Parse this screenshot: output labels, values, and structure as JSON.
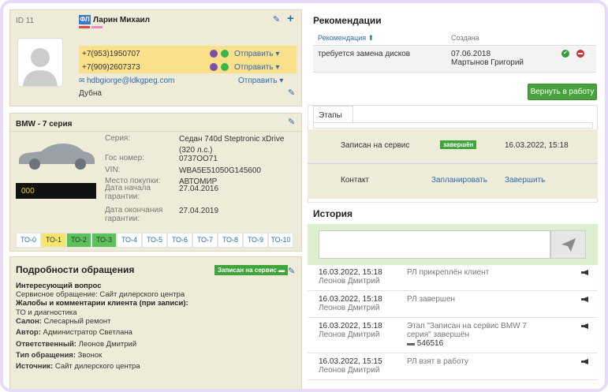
{
  "client": {
    "id": "ID 11",
    "type_badge": "ФЛ",
    "name": "Ларин Михаил",
    "phones": [
      "+7(953)1950707",
      "+7(909)2607373"
    ],
    "send": "Отправить",
    "email": "hdbgiorge@ldkgpeg.com",
    "city": "Дубна"
  },
  "car": {
    "title": "BMW - 7 серия",
    "plate_box": "000",
    "fields": [
      {
        "label": "Серия:",
        "value": "Седан 740d Steptronic xDrive (320 л.с.)"
      },
      {
        "label": "Гос номер:",
        "value": "0737ОО71"
      },
      {
        "label": "VIN:",
        "value": "WBA5E51050G145600"
      },
      {
        "label": "Место покупки:",
        "value": "АВТОМИР"
      },
      {
        "label": "Дата начала гарантии:",
        "value": "27.04.2016"
      },
      {
        "label": "Дата окончания гарантии:",
        "value": "27.04.2019"
      }
    ],
    "to": [
      "ТО-0",
      "ТО-1",
      "ТО-2",
      "ТО-3",
      "ТО-4",
      "ТО-5",
      "ТО-6",
      "ТО-7",
      "ТО-8",
      "ТО-9",
      "ТО-10"
    ]
  },
  "details": {
    "title": "Подробности обращения",
    "status": "Записан на сервис",
    "question_title": "Интересующий вопрос",
    "question": "Сервисное обращение: Сайт дилерского центра",
    "complaints_title": "Жалобы и комментарии клиента (при записи):",
    "complaints": "ТО и диагностика",
    "fields": [
      {
        "label": "Салон:",
        "value": "Слесарный ремонт"
      },
      {
        "label": "Автор:",
        "value": "Администратор Светлана"
      },
      {
        "label": "Ответственный:",
        "value": "Леонов Дмитрий"
      },
      {
        "label": "Тип обращения:",
        "value": "Звонок"
      },
      {
        "label": "Источник:",
        "value": "Сайт дилерского центра"
      }
    ]
  },
  "recommendations": {
    "title": "Рекомендации",
    "columns": [
      "Рекомендация",
      "Создана"
    ],
    "rows": [
      {
        "text": "требуется замена дисков",
        "date": "07.06.2018",
        "author": "Мартынов Григорий"
      }
    ]
  },
  "return_button": "Вернуть в работу",
  "stages": {
    "tab": "Этапы",
    "rows": [
      {
        "name": "Записан на сервис",
        "badge": "завершён",
        "date": "16.03.2022, 15:18"
      },
      {
        "name": "Контакт",
        "plan": "Запланировать",
        "finish": "Завершить"
      }
    ]
  },
  "history": {
    "title": "История",
    "entries": [
      {
        "date": "16.03.2022, 15:18",
        "user": "Леонов Дмитрий",
        "event": "РЛ прикреплён клиент"
      },
      {
        "date": "16.03.2022, 15:18",
        "user": "Леонов Дмитрий",
        "event": "РЛ завершен"
      },
      {
        "date": "16.03.2022, 15:18",
        "user": "Леонов Дмитрий",
        "event": "Этап \"Записан на сервис BMW 7 серия\" завершён",
        "extra": "546516"
      },
      {
        "date": "16.03.2022, 15:15",
        "user": "Леонов Дмитрий",
        "event": "РЛ взят в работу"
      }
    ]
  }
}
